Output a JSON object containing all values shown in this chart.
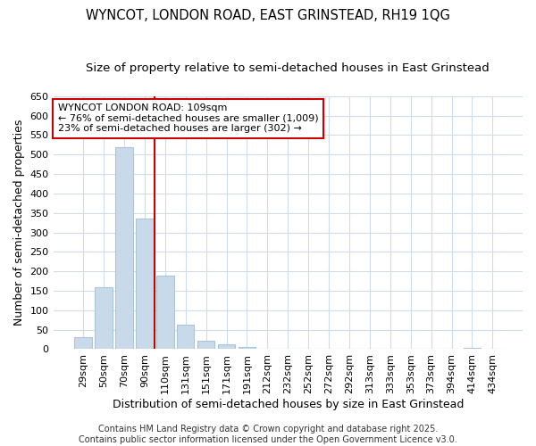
{
  "title": "WYNCOT, LONDON ROAD, EAST GRINSTEAD, RH19 1QG",
  "subtitle": "Size of property relative to semi-detached houses in East Grinstead",
  "xlabel": "Distribution of semi-detached houses by size in East Grinstead",
  "ylabel": "Number of semi-detached properties",
  "categories": [
    "29sqm",
    "50sqm",
    "70sqm",
    "90sqm",
    "110sqm",
    "131sqm",
    "151sqm",
    "171sqm",
    "191sqm",
    "212sqm",
    "232sqm",
    "252sqm",
    "272sqm",
    "292sqm",
    "313sqm",
    "333sqm",
    "353sqm",
    "373sqm",
    "394sqm",
    "414sqm",
    "434sqm"
  ],
  "values": [
    30,
    160,
    520,
    335,
    190,
    63,
    22,
    12,
    5,
    0,
    0,
    0,
    0,
    0,
    0,
    0,
    0,
    0,
    0,
    3,
    0
  ],
  "bar_color": "#c8daea",
  "bar_edge_color": "#aac4d8",
  "reference_line_index": 4,
  "reference_line_color": "#cc0000",
  "annotation_text": "WYNCOT LONDON ROAD: 109sqm\n← 76% of semi-detached houses are smaller (1,009)\n23% of semi-detached houses are larger (302) →",
  "annotation_box_facecolor": "#ffffff",
  "annotation_box_edgecolor": "#cc0000",
  "ylim": [
    0,
    650
  ],
  "yticks": [
    0,
    50,
    100,
    150,
    200,
    250,
    300,
    350,
    400,
    450,
    500,
    550,
    600,
    650
  ],
  "footer": "Contains HM Land Registry data © Crown copyright and database right 2025.\nContains public sector information licensed under the Open Government Licence v3.0.",
  "background_color": "#ffffff",
  "plot_background_color": "#ffffff",
  "grid_color": "#d0dce8",
  "title_fontsize": 10.5,
  "subtitle_fontsize": 9.5,
  "axis_label_fontsize": 9,
  "tick_fontsize": 8,
  "annotation_fontsize": 8,
  "footer_fontsize": 7
}
